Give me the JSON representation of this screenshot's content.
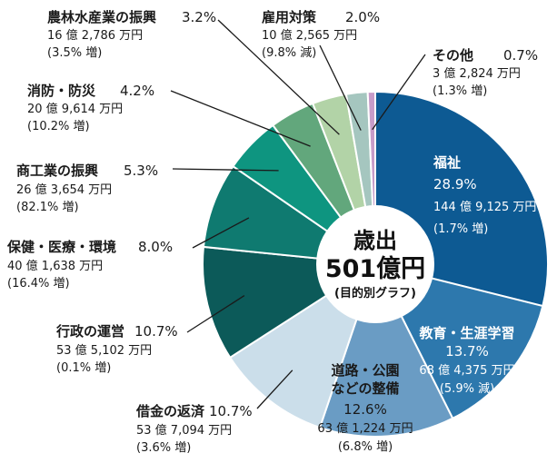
{
  "chart_data": {
    "type": "pie",
    "title": "歳出",
    "total": "501億円",
    "subtitle": "(目的別グラフ)",
    "slices": [
      {
        "name": "福祉",
        "percent": 28.9,
        "pct_label": "28.9%",
        "amount": "144 億 9,125 万円",
        "change": "(1.7% 増)",
        "color": "#0d5a93"
      },
      {
        "name": "教育・生涯学習",
        "percent": 13.7,
        "pct_label": "13.7%",
        "amount": "68 億 4,375 万円",
        "change": "(5.9% 減)",
        "color": "#2d78ad"
      },
      {
        "name": "道路・公園などの整備",
        "name_lines": [
          "道路・公園",
          "などの整備"
        ],
        "percent": 12.6,
        "pct_label": "12.6%",
        "amount": "63 億 1,224 万円",
        "change": "(6.8% 増)",
        "color": "#6a9cc4"
      },
      {
        "name": "借金の返済",
        "percent": 10.7,
        "pct_label": "10.7%",
        "amount": "53 億 7,094 万円",
        "change": "(3.6% 増)",
        "color": "#cbdeea"
      },
      {
        "name": "行政の運営",
        "percent": 10.7,
        "pct_label": "10.7%",
        "amount": "53 億 5,102 万円",
        "change": "(0.1% 増)",
        "color": "#0c5a59"
      },
      {
        "name": "保健・医療・環境",
        "percent": 8.0,
        "pct_label": "8.0%",
        "amount": "40 億 1,638 万円",
        "change": "(16.4% 増)",
        "color": "#0f7a70"
      },
      {
        "name": "商工業の振興",
        "percent": 5.3,
        "pct_label": "5.3%",
        "amount": "26 億 3,654 万円",
        "change": "(82.1% 増)",
        "color": "#0e9580"
      },
      {
        "name": "消防・防災",
        "percent": 4.2,
        "pct_label": "4.2%",
        "amount": "20 億 9,614 万円",
        "change": "(10.2% 増)",
        "color": "#62a77c"
      },
      {
        "name": "農林水産業の振興",
        "percent": 3.2,
        "pct_label": "3.2%",
        "amount": "16 億 2,786 万円",
        "change": "(3.5% 増)",
        "color": "#b2d3a7"
      },
      {
        "name": "雇用対策",
        "percent": 2.0,
        "pct_label": "2.0%",
        "amount": "10 億 2,565 万円",
        "change": "(9.8% 減)",
        "color": "#a5c6bf"
      },
      {
        "name": "その他",
        "percent": 0.7,
        "pct_label": "0.7%",
        "amount": "3 億 2,824 万円",
        "change": "(1.3% 増)",
        "color": "#c79cc9"
      }
    ],
    "last_sliver_color": "#ead7ea"
  }
}
